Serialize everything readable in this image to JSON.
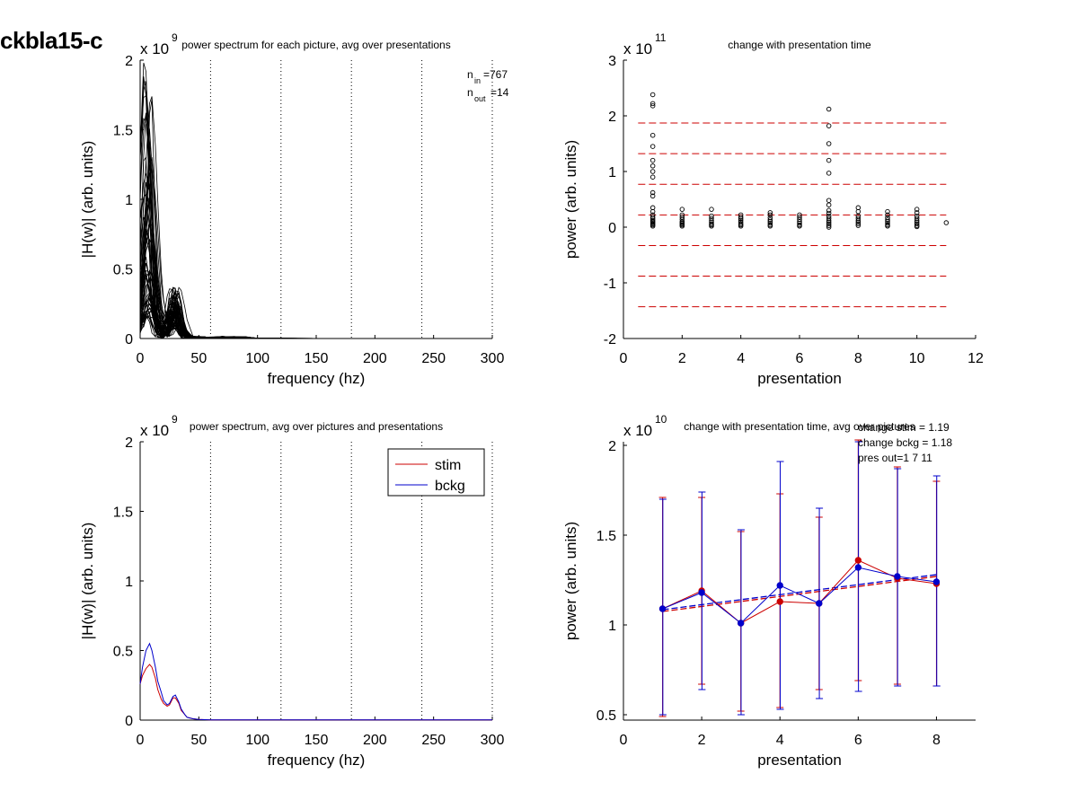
{
  "figure": {
    "title": "ckbla15-c"
  },
  "chart_data": [
    {
      "id": "p1",
      "type": "line",
      "title": "power spectrum for each picture, avg over presentations",
      "xlabel": "frequency (hz)",
      "ylabel": "|H(w)| (arb. units)",
      "exp_label": "x 10",
      "exp_power": "9",
      "xlim": [
        0,
        300
      ],
      "ylim": [
        0,
        2
      ],
      "xticks": [
        "0",
        "50",
        "100",
        "150",
        "200",
        "250",
        "300"
      ],
      "yticks": [
        "0",
        "0.5",
        "1",
        "1.5",
        "2"
      ],
      "vlines": [
        60,
        120,
        180,
        240,
        300
      ],
      "annot": {
        "n_in_label": "n",
        "n_in_sub": "in",
        "n_in_value": "=767",
        "n_out_label": "n",
        "n_out_sub": "out",
        "n_out_value": "=14"
      },
      "note": "many overlapping spectra; peak near 5 Hz up to ~1.95, secondary bump near 30 Hz, decays to ~0 beyond 60 Hz",
      "x": [
        0,
        3,
        5,
        8,
        10,
        13,
        15,
        18,
        20,
        23,
        25,
        28,
        30,
        33,
        35,
        38,
        40,
        45,
        50,
        55,
        60,
        70,
        80,
        90,
        100,
        120,
        150,
        200,
        250,
        300
      ],
      "series_count": 60,
      "peak_value": 1.95,
      "secondary_peak_value": 0.47,
      "colors": {
        "line": "#000000"
      }
    },
    {
      "id": "p2",
      "type": "scatter",
      "title": "change with presentation time",
      "xlabel": "presentation",
      "ylabel": "power (arb. units)",
      "exp_label": "x 10",
      "exp_power": "11",
      "xlim": [
        0,
        12
      ],
      "ylim": [
        -2,
        3
      ],
      "xticks": [
        "0",
        "2",
        "4",
        "6",
        "8",
        "10",
        "12"
      ],
      "yticks": [
        "-2",
        "-1",
        "0",
        "1",
        "2",
        "3"
      ],
      "hlines": [
        1.87,
        1.32,
        0.77,
        0.22,
        -0.33,
        -0.88,
        -1.43
      ],
      "hline_xrange": [
        0.5,
        11
      ],
      "points": [
        {
          "x": 1,
          "y": [
            2.38,
            2.22,
            2.18,
            1.65,
            1.45,
            1.2,
            1.1,
            1.0,
            0.9,
            0.62,
            0.56,
            0.35,
            0.28,
            0.22,
            0.18,
            0.15,
            0.12,
            0.1,
            0.08,
            0.06,
            0.04,
            0.02
          ]
        },
        {
          "x": 2,
          "y": [
            0.32,
            0.22,
            0.18,
            0.14,
            0.1,
            0.08,
            0.06,
            0.04,
            0.02
          ]
        },
        {
          "x": 3,
          "y": [
            0.32,
            0.2,
            0.16,
            0.12,
            0.09,
            0.06,
            0.04,
            0.02
          ]
        },
        {
          "x": 4,
          "y": [
            0.22,
            0.18,
            0.15,
            0.12,
            0.09,
            0.06,
            0.04,
            0.02
          ]
        },
        {
          "x": 5,
          "y": [
            0.26,
            0.22,
            0.17,
            0.13,
            0.1,
            0.07,
            0.04,
            0.02
          ]
        },
        {
          "x": 6,
          "y": [
            0.22,
            0.18,
            0.14,
            0.1,
            0.07,
            0.04,
            0.02
          ]
        },
        {
          "x": 7,
          "y": [
            2.12,
            1.82,
            1.5,
            1.2,
            0.97,
            0.48,
            0.4,
            0.3,
            0.25,
            0.2,
            0.16,
            0.12,
            0.09,
            0.06,
            0.03,
            0.0
          ]
        },
        {
          "x": 8,
          "y": [
            0.35,
            0.28,
            0.2,
            0.16,
            0.12,
            0.09,
            0.06,
            0.03
          ]
        },
        {
          "x": 9,
          "y": [
            0.28,
            0.22,
            0.17,
            0.13,
            0.1,
            0.07,
            0.04,
            0.02
          ]
        },
        {
          "x": 10,
          "y": [
            0.32,
            0.26,
            0.2,
            0.16,
            0.12,
            0.09,
            0.06,
            0.03,
            0.01
          ]
        },
        {
          "x": 11,
          "y": [
            0.08
          ]
        }
      ],
      "colors": {
        "hline": "#cc0000",
        "marker": "#000000"
      }
    },
    {
      "id": "p3",
      "type": "line",
      "title": "power spectrum, avg over pictures and presentations",
      "xlabel": "frequency (hz)",
      "ylabel": "|H(w)| (arb. units)",
      "exp_label": "x 10",
      "exp_power": "9",
      "xlim": [
        0,
        300
      ],
      "ylim": [
        0,
        2
      ],
      "xticks": [
        "0",
        "50",
        "100",
        "150",
        "200",
        "250",
        "300"
      ],
      "yticks": [
        "0",
        "0.5",
        "1",
        "1.5",
        "2"
      ],
      "vlines": [
        60,
        120,
        180,
        240,
        300
      ],
      "legend": {
        "placement": "top-right",
        "entries": [
          "stim",
          "bckg"
        ]
      },
      "x": [
        0,
        2,
        5,
        8,
        10,
        13,
        15,
        18,
        20,
        23,
        25,
        28,
        30,
        33,
        35,
        38,
        40,
        45,
        50,
        55,
        60,
        80,
        100,
        150,
        200,
        250,
        300
      ],
      "series": [
        {
          "name": "stim",
          "color": "#cc0000",
          "values": [
            0.26,
            0.32,
            0.37,
            0.4,
            0.38,
            0.3,
            0.22,
            0.15,
            0.12,
            0.1,
            0.11,
            0.16,
            0.16,
            0.12,
            0.07,
            0.04,
            0.02,
            0.01,
            0.005,
            0.003,
            0.002,
            0.001,
            0.001,
            0.001,
            0.001,
            0.001,
            0.001
          ]
        },
        {
          "name": "bckg",
          "color": "#0000cc",
          "values": [
            0.26,
            0.38,
            0.5,
            0.55,
            0.5,
            0.38,
            0.28,
            0.2,
            0.14,
            0.11,
            0.12,
            0.17,
            0.18,
            0.13,
            0.08,
            0.04,
            0.02,
            0.01,
            0.005,
            0.003,
            0.002,
            0.001,
            0.001,
            0.001,
            0.001,
            0.001,
            0.001
          ]
        }
      ]
    },
    {
      "id": "p4",
      "type": "line",
      "title": "change with presentation time, avg over pictures",
      "xlabel": "presentation",
      "ylabel": "power (arb. units)",
      "exp_label": "x 10",
      "exp_power": "10",
      "xlim": [
        0,
        9
      ],
      "ylim": [
        0.47,
        2.02
      ],
      "xticks": [
        "0",
        "2",
        "4",
        "6",
        "8"
      ],
      "yticks": [
        "0.5",
        "1",
        "1.5",
        "2"
      ],
      "annotations": [
        "change stim = 1.19",
        "change bckg = 1.18",
        "pres out=1 7 11"
      ],
      "x": [
        1,
        2,
        3,
        4,
        5,
        6,
        7,
        8
      ],
      "series": [
        {
          "name": "stim",
          "color": "#cc0000",
          "values": [
            1.09,
            1.19,
            1.01,
            1.13,
            1.12,
            1.36,
            1.26,
            1.23
          ],
          "err_low": [
            0.49,
            0.67,
            0.52,
            0.54,
            0.64,
            0.69,
            0.67,
            0.66
          ],
          "err_high": [
            1.71,
            1.71,
            1.52,
            1.73,
            1.6,
            2.03,
            1.88,
            1.8
          ],
          "trend": [
            1.075,
            1.27
          ]
        },
        {
          "name": "bckg",
          "color": "#0000cc",
          "values": [
            1.09,
            1.18,
            1.01,
            1.22,
            1.12,
            1.32,
            1.27,
            1.24
          ],
          "err_low": [
            0.5,
            0.64,
            0.5,
            0.53,
            0.59,
            0.63,
            0.66,
            0.66
          ],
          "err_high": [
            1.7,
            1.74,
            1.53,
            1.91,
            1.65,
            2.02,
            1.87,
            1.83
          ],
          "trend": [
            1.085,
            1.28
          ]
        }
      ]
    }
  ]
}
